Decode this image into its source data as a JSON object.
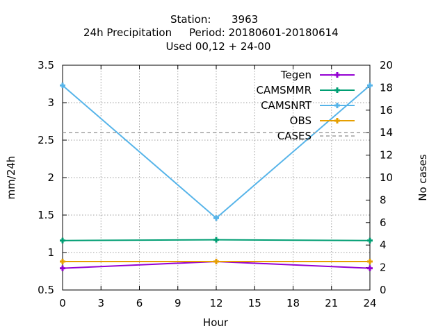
{
  "title": {
    "line1_label": "Station:",
    "line1_value": "3963",
    "line2_label": "24h Precipitation",
    "line2_value": "Period: 20180601-20180614",
    "line3": "Used  00,12  + 24-00"
  },
  "chart_data": {
    "type": "line",
    "xlabel": "Hour",
    "ylabel": "mm/24h",
    "y2label": "No cases",
    "xlim": [
      0,
      24
    ],
    "ylim": [
      0.5,
      3.5
    ],
    "y2lim": [
      0,
      20
    ],
    "xticks": [
      0,
      3,
      6,
      9,
      12,
      15,
      18,
      21,
      24
    ],
    "yticks": [
      0.5,
      1,
      1.5,
      2,
      2.5,
      3,
      3.5
    ],
    "y2ticks": [
      0,
      2,
      4,
      6,
      8,
      10,
      12,
      14,
      16,
      18,
      20
    ],
    "grid": true,
    "legend_position": "top-right",
    "x": [
      0,
      12,
      24
    ],
    "series": [
      {
        "name": "Tegen",
        "values": [
          0.79,
          0.88,
          0.79
        ],
        "color": "#9400d3",
        "marker": "plus",
        "axis": "y"
      },
      {
        "name": "CAMSMMR",
        "values": [
          1.16,
          1.17,
          1.16
        ],
        "color": "#009e73",
        "marker": "plus",
        "axis": "y"
      },
      {
        "name": "CAMSNRT",
        "values": [
          3.23,
          1.46,
          3.23
        ],
        "color": "#56b4e9",
        "marker": "plus",
        "axis": "y"
      },
      {
        "name": "OBS",
        "values": [
          0.88,
          0.88,
          0.88
        ],
        "color": "#e69f00",
        "marker": "plus",
        "axis": "y"
      },
      {
        "name": "CASES",
        "values": [
          14,
          14,
          14
        ],
        "color": "#a0a0a0",
        "style": "dashed",
        "axis": "y2"
      }
    ]
  }
}
